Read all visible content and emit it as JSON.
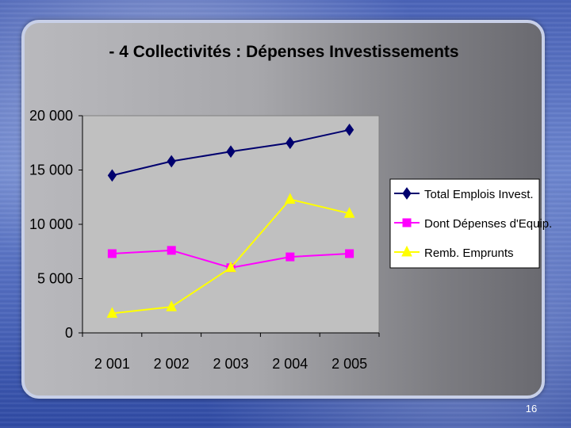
{
  "page_number": "16",
  "chart_data": {
    "type": "line",
    "title": "- 4 Collectivités : Dépenses Investissements",
    "categories": [
      "2 001",
      "2 002",
      "2 003",
      "2 004",
      "2 005"
    ],
    "y_ticks": [
      "0",
      "5 000",
      "10 000",
      "15 000",
      "20 000"
    ],
    "ylim": [
      0,
      20000
    ],
    "grid": false,
    "legend_position": "right",
    "series": [
      {
        "name": "Total Emplois Invest.",
        "color": "#00006e",
        "marker": "diamond",
        "values": [
          14500,
          15800,
          16700,
          17500,
          18700
        ]
      },
      {
        "name": "Dont Dépenses d'Equip.",
        "color": "#ff00ff",
        "marker": "square",
        "values": [
          7300,
          7600,
          6000,
          7000,
          7300
        ]
      },
      {
        "name": "Remb. Emprunts",
        "color": "#ffff00",
        "marker": "triangle",
        "values": [
          1800,
          2400,
          6000,
          12300,
          11000
        ]
      }
    ]
  }
}
